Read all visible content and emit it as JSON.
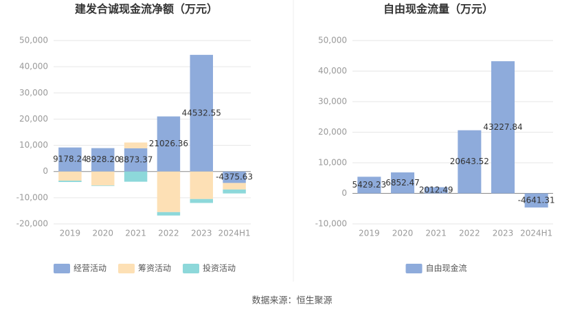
{
  "chart_data": [
    {
      "type": "bar",
      "stacked": true,
      "title": "建发合诚现金流净额（万元）",
      "categories": [
        "2019",
        "2020",
        "2021",
        "2022",
        "2023",
        "2024H1"
      ],
      "series": [
        {
          "name": "经营活动",
          "color": "#8eabdb",
          "values": [
            9178.24,
            8928.2,
            8873.37,
            21026.36,
            44532.55,
            -4375.63
          ],
          "value_labels": [
            "9178.24",
            "8928.20",
            "8873.37",
            "21026.36",
            "44532.55",
            "-4375.63"
          ]
        },
        {
          "name": "筹资活动",
          "color": "#fde0b5",
          "values": [
            -3500,
            -5300,
            2200,
            -15500,
            -10500,
            -2500
          ]
        },
        {
          "name": "投资活动",
          "color": "#8dd8da",
          "values": [
            -500,
            -200,
            -3900,
            -1300,
            -1500,
            -1500
          ]
        }
      ],
      "ylim": [
        -20000,
        50000
      ],
      "yticks": [
        {
          "value": -20000,
          "label": "-20,000"
        },
        {
          "value": -10000,
          "label": "-10,000"
        },
        0,
        {
          "value": 10000,
          "label": "10,000"
        },
        {
          "value": 20000,
          "label": "20,000"
        },
        {
          "value": 30000,
          "label": "30,000"
        },
        {
          "value": 40000,
          "label": "40,000"
        },
        {
          "value": 50000,
          "label": "50,000"
        }
      ],
      "grid": true,
      "legend": "bottom"
    },
    {
      "type": "bar",
      "title": "自由现金流量（万元）",
      "categories": [
        "2019",
        "2020",
        "2021",
        "2022",
        "2023",
        "2024H1"
      ],
      "series": [
        {
          "name": "自由现金流",
          "color": "#8eabdb",
          "values": [
            5429.23,
            6852.47,
            2012.49,
            20643.52,
            43227.84,
            -4641.31
          ],
          "value_labels": [
            "5429.23",
            "6852.47",
            "2012.49",
            "20643.52",
            "43227.84",
            "-4641.31"
          ]
        }
      ],
      "ylim": [
        -10000,
        50000
      ],
      "yticks": [
        {
          "value": -10000,
          "label": "-10,000"
        },
        0,
        {
          "value": 10000,
          "label": "10,000"
        },
        {
          "value": 20000,
          "label": "20,000"
        },
        {
          "value": 30000,
          "label": "30,000"
        },
        {
          "value": 40000,
          "label": "40,000"
        },
        {
          "value": 50000,
          "label": "50,000"
        }
      ],
      "grid": true,
      "legend": "bottom"
    }
  ],
  "footer": "数据来源：恒生聚源"
}
